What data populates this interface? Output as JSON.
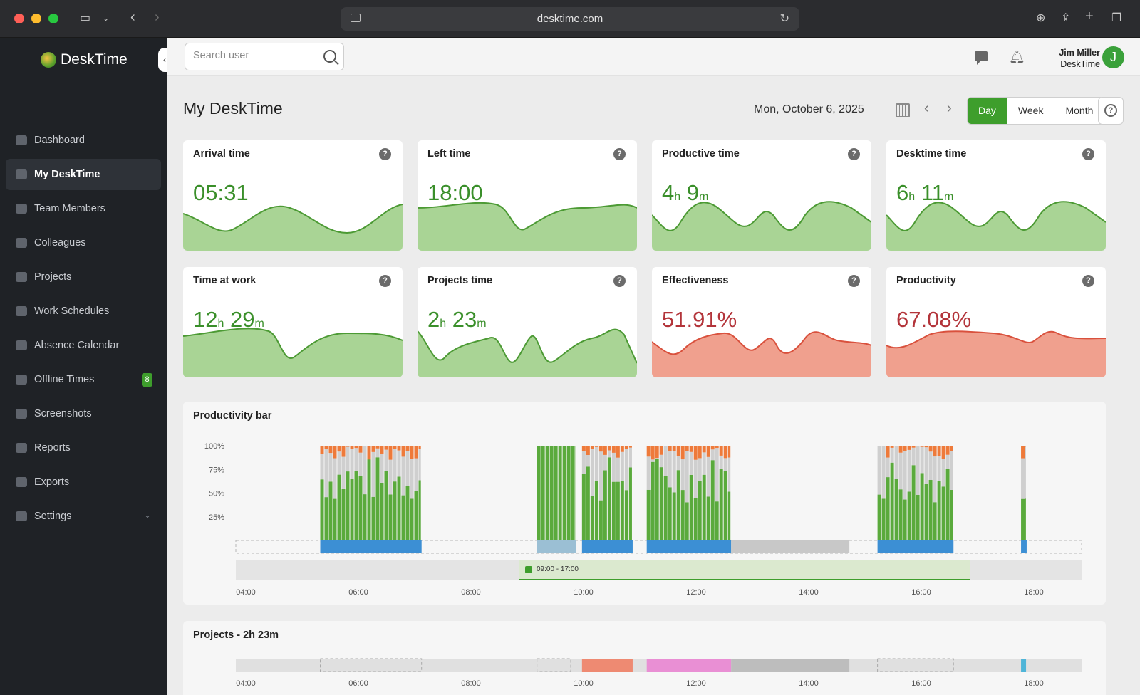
{
  "browser": {
    "url": "desktime.com"
  },
  "app": {
    "logo_text": "DeskTime"
  },
  "sidebar": {
    "items": [
      {
        "label": "Dashboard",
        "icon": "bar-chart-icon"
      },
      {
        "label": "My DeskTime",
        "icon": "monitor-icon",
        "active": true
      },
      {
        "label": "Team Members",
        "icon": "users-icon"
      },
      {
        "label": "Colleagues",
        "icon": "user-circle-icon"
      },
      {
        "label": "Projects",
        "icon": "folder-icon"
      },
      {
        "label": "Work Schedules",
        "icon": "briefcase-icon"
      },
      {
        "label": "Absence Calendar",
        "icon": "calendar-icon"
      },
      {
        "label": "Offline Times",
        "icon": "clock-icon",
        "badge": "8"
      },
      {
        "label": "Screenshots",
        "icon": "screenshot-icon"
      },
      {
        "label": "Reports",
        "icon": "pie-chart-icon"
      },
      {
        "label": "Exports",
        "icon": "export-icon"
      },
      {
        "label": "Settings",
        "icon": "gear-icon"
      }
    ]
  },
  "topbar": {
    "search_placeholder": "Search user",
    "user_name": "Jim Miller",
    "user_org": "DeskTime",
    "avatar_letter": "J"
  },
  "main": {
    "title": "My DeskTime",
    "date": "Mon, October 6, 2025",
    "period_tabs": [
      "Day",
      "Week",
      "Month"
    ],
    "active_period": "Day"
  },
  "cards": [
    {
      "title": "Arrival time",
      "value": "05:31",
      "color": "green"
    },
    {
      "title": "Left time",
      "value": "18:00",
      "color": "green"
    },
    {
      "title": "Productive time",
      "h": "4",
      "m": "9",
      "color": "green"
    },
    {
      "title": "Desktime time",
      "h": "6",
      "m": "11",
      "color": "green"
    },
    {
      "title": "Time at work",
      "h": "12",
      "m": "29",
      "color": "green"
    },
    {
      "title": "Projects time",
      "h": "2",
      "m": "23",
      "color": "green"
    },
    {
      "title": "Effectiveness",
      "value": "51.91%",
      "color": "red"
    },
    {
      "title": "Productivity",
      "value": "67.08%",
      "color": "red"
    }
  ],
  "units": {
    "h": "h",
    "m": "m"
  },
  "productivity_bar": {
    "title": "Productivity bar",
    "y_labels": [
      "100%",
      "75%",
      "50%",
      "25%"
    ],
    "x_labels": [
      "04:00",
      "06:00",
      "08:00",
      "10:00",
      "12:00",
      "14:00",
      "16:00",
      "18:00"
    ],
    "work_hours": "09:00 - 17:00"
  },
  "projects_panel": {
    "title": "Projects - 2h 23m",
    "x_labels": [
      "04:00",
      "06:00",
      "08:00",
      "10:00",
      "12:00",
      "14:00",
      "16:00",
      "18:00"
    ]
  },
  "colors": {
    "productive": "#5aaa3c",
    "neutral": "#cfcfcf",
    "unproductive": "#ee7a3a",
    "brand_green": "#3e9e2c",
    "effectiveness_red": "#b3343a"
  }
}
